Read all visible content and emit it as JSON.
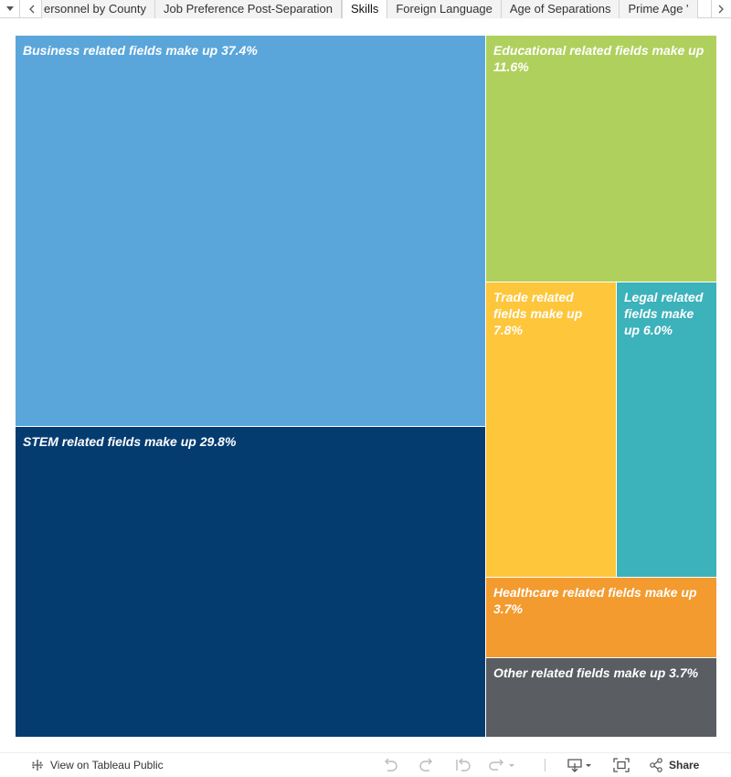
{
  "tabbar": {
    "tabs": [
      {
        "label": "ersonnel by County",
        "active": false
      },
      {
        "label": "Job Preference Post-Separation",
        "active": false
      },
      {
        "label": "Skills",
        "active": true
      },
      {
        "label": "Foreign Language",
        "active": false
      },
      {
        "label": "Age of Separations",
        "active": false
      },
      {
        "label": "Prime Age '",
        "active": false
      }
    ]
  },
  "chart_data": {
    "type": "treemap",
    "items": [
      {
        "name": "Business",
        "value": 37.4,
        "label": "Business related fields make up 37.4%",
        "color": "#5aa6db"
      },
      {
        "name": "STEM",
        "value": 29.8,
        "label": "STEM related fields make up 29.8%",
        "color": "#053c70"
      },
      {
        "name": "Educational",
        "value": 11.6,
        "label": "Educational related fields make up 11.6%",
        "color": "#b0d05d"
      },
      {
        "name": "Trade",
        "value": 7.8,
        "label": "Trade related fields make up 7.8%",
        "color": "#fec63b"
      },
      {
        "name": "Legal",
        "value": 6.0,
        "label": "Legal related fields make up 6.0%",
        "color": "#3cb2bb"
      },
      {
        "name": "Healthcare",
        "value": 3.7,
        "label": "Healthcare related fields make up 3.7%",
        "color": "#f39b2f"
      },
      {
        "name": "Other",
        "value": 3.7,
        "label": "Other related fields make up 3.7%",
        "color": "#5a5e62"
      }
    ]
  },
  "footer": {
    "view_link": "View on Tableau Public",
    "share_label": "Share"
  }
}
